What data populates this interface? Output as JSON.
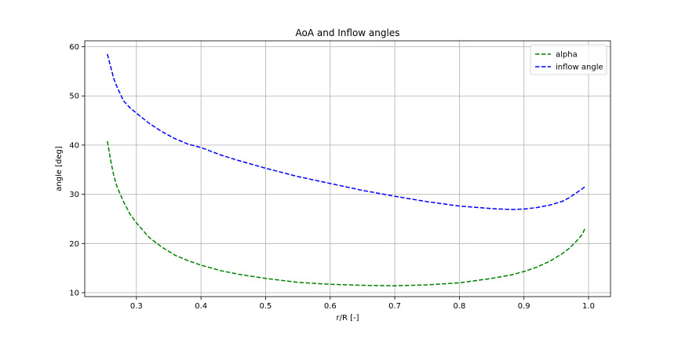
{
  "chart_data": {
    "type": "line",
    "title": "AoA and Inflow angles",
    "xlabel": "r/R [-]",
    "ylabel": "angle [deg]",
    "xlim": [
      0.22,
      1.034
    ],
    "ylim": [
      9.2,
      61.2
    ],
    "xticks": [
      0.3,
      0.4,
      0.5,
      0.6,
      0.7,
      0.8,
      0.9,
      1.0
    ],
    "xtick_labels": [
      "0.3",
      "0.4",
      "0.5",
      "0.6",
      "0.7",
      "0.8",
      "0.9",
      "1.0"
    ],
    "yticks": [
      10,
      20,
      30,
      40,
      50,
      60
    ],
    "ytick_labels": [
      "10",
      "20",
      "30",
      "40",
      "50",
      "60"
    ],
    "grid": true,
    "legend_position": "top-right",
    "series": [
      {
        "name": "alpha",
        "color": "#008000",
        "linestyle": "dashed",
        "x": [
          0.255,
          0.26,
          0.265,
          0.27,
          0.28,
          0.29,
          0.3,
          0.32,
          0.34,
          0.36,
          0.38,
          0.4,
          0.43,
          0.46,
          0.5,
          0.55,
          0.6,
          0.65,
          0.7,
          0.75,
          0.8,
          0.85,
          0.88,
          0.9,
          0.92,
          0.94,
          0.96,
          0.97,
          0.98,
          0.99,
          0.995
        ],
        "y": [
          40.8,
          37.0,
          33.8,
          31.5,
          28.5,
          26.0,
          24.2,
          21.2,
          19.2,
          17.6,
          16.5,
          15.6,
          14.5,
          13.7,
          12.9,
          12.1,
          11.7,
          11.5,
          11.4,
          11.6,
          12.0,
          12.9,
          13.6,
          14.3,
          15.2,
          16.4,
          18.0,
          19.0,
          20.3,
          21.8,
          23.2
        ]
      },
      {
        "name": "inflow angle",
        "color": "#0000ff",
        "linestyle": "dashed",
        "x": [
          0.255,
          0.26,
          0.265,
          0.27,
          0.28,
          0.29,
          0.3,
          0.32,
          0.34,
          0.36,
          0.38,
          0.4,
          0.43,
          0.46,
          0.5,
          0.55,
          0.6,
          0.65,
          0.7,
          0.75,
          0.8,
          0.85,
          0.88,
          0.9,
          0.92,
          0.94,
          0.96,
          0.97,
          0.98,
          0.99,
          0.995
        ],
        "y": [
          58.5,
          56.0,
          53.5,
          51.8,
          49.0,
          47.6,
          46.5,
          44.4,
          42.7,
          41.3,
          40.2,
          39.5,
          38.0,
          36.8,
          35.3,
          33.6,
          32.2,
          30.8,
          29.6,
          28.5,
          27.6,
          27.1,
          26.9,
          27.0,
          27.3,
          27.8,
          28.6,
          29.3,
          30.2,
          31.1,
          31.6
        ]
      }
    ]
  }
}
